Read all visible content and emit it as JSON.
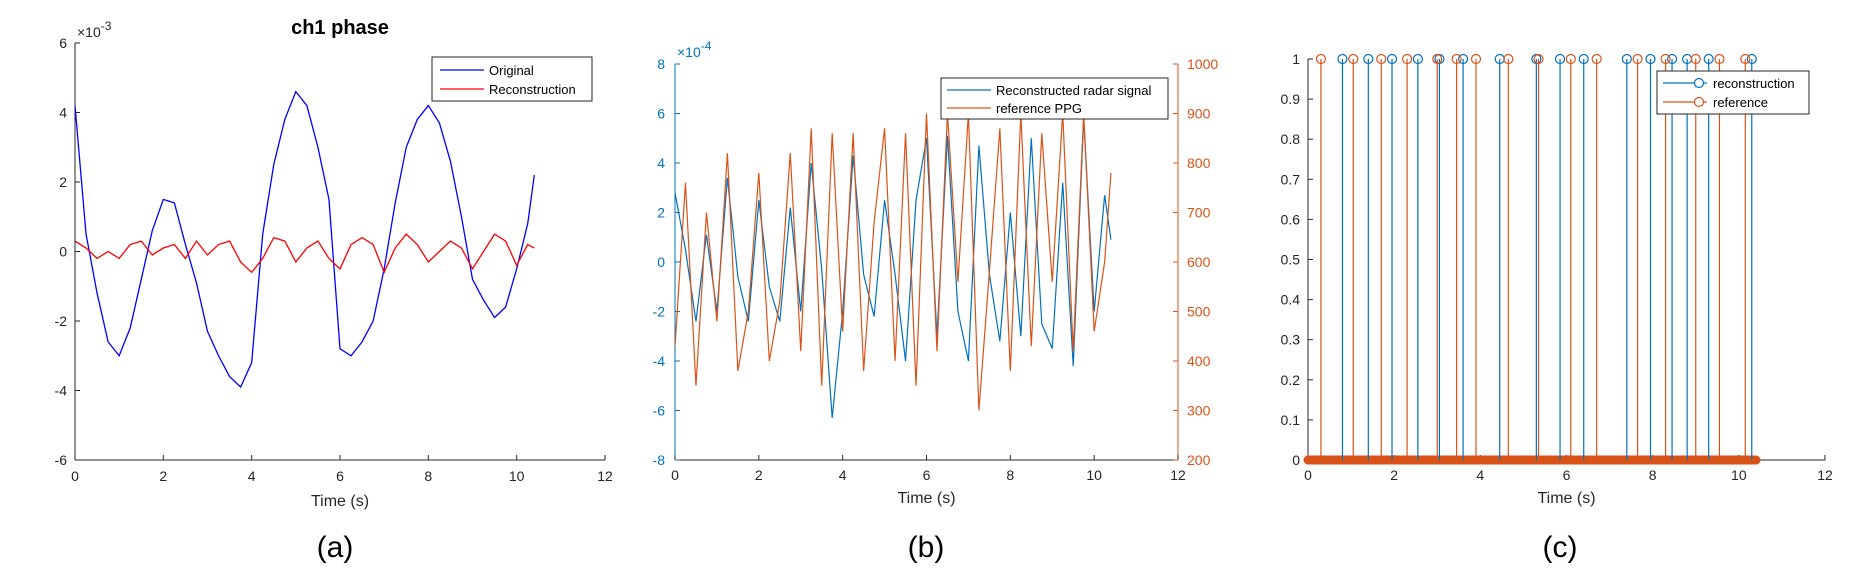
{
  "chart_data": [
    {
      "panel": "a",
      "caption": "(a)",
      "type": "line",
      "title": "ch1 phase",
      "xlabel": "Time (s)",
      "ylabel": "",
      "xlim": [
        0,
        12
      ],
      "ylim": [
        -6,
        6
      ],
      "y_multiplier": "×10",
      "y_exponent": "-3",
      "x_ticks": [
        "0",
        "2",
        "4",
        "6",
        "8",
        "10",
        "12"
      ],
      "y_ticks": [
        "-6",
        "-4",
        "-2",
        "0",
        "2",
        "4",
        "6"
      ],
      "legend_position": "top-right",
      "series": [
        {
          "name": "Original",
          "color": "#0000ff",
          "x": [
            0,
            0.25,
            0.5,
            0.75,
            1.0,
            1.25,
            1.5,
            1.75,
            2.0,
            2.25,
            2.5,
            2.75,
            3.0,
            3.25,
            3.5,
            3.75,
            4.0,
            4.25,
            4.5,
            4.75,
            5.0,
            5.25,
            5.5,
            5.75,
            6.0,
            6.25,
            6.5,
            6.75,
            7.0,
            7.25,
            7.5,
            7.75,
            8.0,
            8.25,
            8.5,
            8.75,
            9.0,
            9.25,
            9.5,
            9.75,
            10.0,
            10.25,
            10.4
          ],
          "y": [
            4.2,
            0.5,
            -1.2,
            -2.6,
            -3.0,
            -2.2,
            -0.8,
            0.6,
            1.5,
            1.4,
            0.2,
            -0.9,
            -2.3,
            -3.0,
            -3.6,
            -3.9,
            -3.2,
            0.5,
            2.5,
            3.8,
            4.6,
            4.2,
            3.0,
            1.5,
            -2.8,
            -3.0,
            -2.6,
            -2.0,
            -0.5,
            1.4,
            3.0,
            3.8,
            4.2,
            3.7,
            2.6,
            1.0,
            -0.8,
            -1.4,
            -1.9,
            -1.6,
            -0.5,
            0.8,
            2.2
          ]
        },
        {
          "name": "Reconstruction",
          "color": "#ff0000",
          "x": [
            0,
            0.25,
            0.5,
            0.75,
            1.0,
            1.25,
            1.5,
            1.75,
            2.0,
            2.25,
            2.5,
            2.75,
            3.0,
            3.25,
            3.5,
            3.75,
            4.0,
            4.25,
            4.5,
            4.75,
            5.0,
            5.25,
            5.5,
            5.75,
            6.0,
            6.25,
            6.5,
            6.75,
            7.0,
            7.25,
            7.5,
            7.75,
            8.0,
            8.25,
            8.5,
            8.75,
            9.0,
            9.25,
            9.5,
            9.75,
            10.0,
            10.25,
            10.4
          ],
          "y": [
            0.3,
            0.1,
            -0.2,
            0.0,
            -0.2,
            0.2,
            0.3,
            -0.1,
            0.1,
            0.2,
            -0.2,
            0.3,
            -0.1,
            0.2,
            0.3,
            -0.3,
            -0.6,
            -0.2,
            0.4,
            0.3,
            -0.3,
            0.1,
            0.3,
            -0.2,
            -0.5,
            0.2,
            0.4,
            0.2,
            -0.6,
            0.1,
            0.5,
            0.2,
            -0.3,
            0.0,
            0.3,
            0.1,
            -0.5,
            0.0,
            0.5,
            0.3,
            -0.4,
            0.2,
            0.1
          ]
        }
      ]
    },
    {
      "panel": "b",
      "caption": "(b)",
      "type": "line",
      "xlabel": "Time (s)",
      "xlim": [
        0,
        12
      ],
      "ylim_left": [
        -8,
        8
      ],
      "ylim_right": [
        200,
        1000
      ],
      "y_multiplier": "×10",
      "y_exponent": "-4",
      "x_ticks": [
        "0",
        "2",
        "4",
        "6",
        "8",
        "10",
        "12"
      ],
      "y_ticks_left": [
        "-8",
        "-6",
        "-4",
        "-2",
        "0",
        "2",
        "4",
        "6",
        "8"
      ],
      "y_ticks_right": [
        "200",
        "300",
        "400",
        "500",
        "600",
        "700",
        "800",
        "900",
        "1000"
      ],
      "left_axis_color": "#0072bd",
      "right_axis_color": "#d95319",
      "legend_position": "top-right",
      "series": [
        {
          "name": "Reconstructed radar signal",
          "axis": "left",
          "color": "#0072bd",
          "x": [
            0,
            0.25,
            0.5,
            0.75,
            1.0,
            1.25,
            1.5,
            1.75,
            2.0,
            2.25,
            2.5,
            2.75,
            3.0,
            3.25,
            3.5,
            3.75,
            4.0,
            4.25,
            4.5,
            4.75,
            5.0,
            5.25,
            5.5,
            5.75,
            6.0,
            6.25,
            6.5,
            6.75,
            7.0,
            7.25,
            7.5,
            7.75,
            8.0,
            8.25,
            8.5,
            8.75,
            9.0,
            9.25,
            9.5,
            9.75,
            10.0,
            10.25,
            10.4
          ],
          "y": [
            2.8,
            0.5,
            -2.4,
            1.1,
            -2.0,
            3.4,
            -0.6,
            -2.4,
            2.5,
            -1.0,
            -2.4,
            2.2,
            -2.0,
            4.0,
            -0.3,
            -6.3,
            -2.0,
            4.3,
            -0.5,
            -2.2,
            2.5,
            -0.5,
            -4.0,
            2.5,
            5.0,
            -3.0,
            5.1,
            -2.0,
            -4.0,
            4.7,
            -0.5,
            -3.2,
            2.0,
            -3.0,
            5.0,
            -2.5,
            -3.5,
            3.2,
            -4.2,
            5.8,
            -2.0,
            2.7,
            0.9
          ]
        },
        {
          "name": "reference PPG",
          "axis": "right",
          "color": "#d95319",
          "x": [
            0,
            0.25,
            0.5,
            0.75,
            1.0,
            1.25,
            1.5,
            1.75,
            2.0,
            2.25,
            2.5,
            2.75,
            3.0,
            3.25,
            3.5,
            3.75,
            4.0,
            4.25,
            4.5,
            4.75,
            5.0,
            5.25,
            5.5,
            5.75,
            6.0,
            6.25,
            6.5,
            6.75,
            7.0,
            7.25,
            7.5,
            7.75,
            8.0,
            8.25,
            8.5,
            8.75,
            9.0,
            9.25,
            9.5,
            9.75,
            10.0,
            10.25,
            10.4
          ],
          "y": [
            430,
            760,
            350,
            700,
            480,
            820,
            380,
            500,
            780,
            400,
            520,
            820,
            420,
            870,
            350,
            860,
            460,
            860,
            380,
            680,
            870,
            400,
            860,
            350,
            900,
            420,
            900,
            560,
            900,
            300,
            580,
            870,
            380,
            900,
            430,
            860,
            560,
            900,
            420,
            900,
            460,
            600,
            780
          ]
        }
      ]
    },
    {
      "panel": "c",
      "caption": "(c)",
      "type": "stem",
      "xlabel": "Time (s)",
      "xlim": [
        0,
        12
      ],
      "ylim": [
        0,
        1
      ],
      "x_ticks": [
        "0",
        "2",
        "4",
        "6",
        "8",
        "10",
        "12"
      ],
      "y_ticks": [
        "0",
        "0.1",
        "0.2",
        "0.3",
        "0.4",
        "0.5",
        "0.6",
        "0.7",
        "0.8",
        "0.9",
        "1"
      ],
      "legend_position": "top-right",
      "zero_samples_range": [
        0,
        10.4
      ],
      "series": [
        {
          "name": "reconstruction",
          "color": "#0072bd",
          "x": [
            0.8,
            1.4,
            1.95,
            2.55,
            3.05,
            3.6,
            4.45,
            5.3,
            5.85,
            6.4,
            7.4,
            7.95,
            8.45,
            8.8,
            9.3,
            10.3
          ],
          "y": [
            1,
            1,
            1,
            1,
            1,
            1,
            1,
            1,
            1,
            1,
            1,
            1,
            1,
            1,
            1,
            1
          ]
        },
        {
          "name": "reference",
          "color": "#d95319",
          "x": [
            0.3,
            1.05,
            1.7,
            2.3,
            3.0,
            3.45,
            3.9,
            4.65,
            5.35,
            6.1,
            6.7,
            7.65,
            8.3,
            9.0,
            9.55,
            10.15
          ],
          "y": [
            1,
            1,
            1,
            1,
            1,
            1,
            1,
            1,
            1,
            1,
            1,
            1,
            1,
            1,
            1,
            1
          ]
        }
      ]
    }
  ]
}
